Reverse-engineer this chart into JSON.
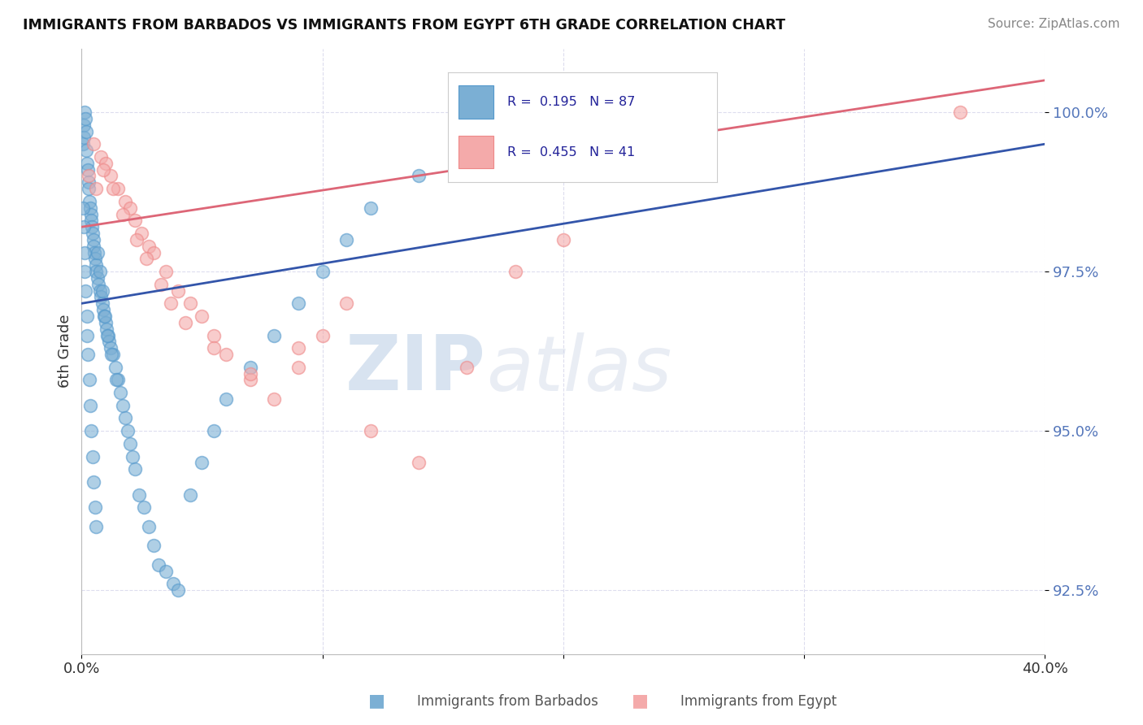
{
  "title": "IMMIGRANTS FROM BARBADOS VS IMMIGRANTS FROM EGYPT 6TH GRADE CORRELATION CHART",
  "source_text": "Source: ZipAtlas.com",
  "ylabel": "6th Grade",
  "xlim": [
    0.0,
    40.0
  ],
  "ylim": [
    91.5,
    101.0
  ],
  "x_ticks": [
    0.0,
    10.0,
    20.0,
    30.0,
    40.0
  ],
  "x_tick_labels": [
    "0.0%",
    "",
    "",
    "",
    "40.0%"
  ],
  "y_ticks": [
    92.5,
    95.0,
    97.5,
    100.0
  ],
  "y_tick_labels": [
    "92.5%",
    "95.0%",
    "97.5%",
    "100.0%"
  ],
  "blue_color": "#7BAFD4",
  "blue_edge_color": "#5599CC",
  "pink_color": "#F4AAAA",
  "pink_edge_color": "#EE8888",
  "blue_line_color": "#3355AA",
  "pink_line_color": "#DD6677",
  "legend_R1": "0.195",
  "legend_N1": "87",
  "legend_R2": "0.455",
  "legend_N2": "41",
  "legend_label1": "Immigrants from Barbados",
  "legend_label2": "Immigrants from Egypt",
  "watermark_zip": "ZIP",
  "watermark_atlas": "atlas",
  "background_color": "#ffffff",
  "grid_color": "#DDDDEE",
  "ytick_color": "#5577BB",
  "blue_x": [
    0.05,
    0.08,
    0.1,
    0.12,
    0.15,
    0.18,
    0.2,
    0.22,
    0.25,
    0.28,
    0.3,
    0.32,
    0.35,
    0.38,
    0.4,
    0.42,
    0.45,
    0.48,
    0.5,
    0.52,
    0.55,
    0.58,
    0.6,
    0.65,
    0.7,
    0.75,
    0.8,
    0.85,
    0.9,
    0.95,
    1.0,
    1.05,
    1.1,
    1.15,
    1.2,
    1.3,
    1.4,
    1.5,
    1.6,
    1.7,
    1.8,
    1.9,
    2.0,
    2.1,
    2.2,
    2.4,
    2.6,
    2.8,
    3.0,
    3.2,
    3.5,
    3.8,
    4.0,
    4.5,
    5.0,
    5.5,
    6.0,
    7.0,
    8.0,
    9.0,
    10.0,
    11.0,
    12.0,
    14.0,
    16.0,
    0.06,
    0.09,
    0.11,
    0.14,
    0.17,
    0.21,
    0.24,
    0.27,
    0.31,
    0.36,
    0.41,
    0.46,
    0.51,
    0.56,
    0.61,
    0.68,
    0.78,
    0.88,
    0.98,
    1.08,
    1.25,
    1.45
  ],
  "blue_y": [
    99.5,
    99.8,
    99.6,
    100.0,
    99.9,
    99.7,
    99.4,
    99.2,
    99.1,
    98.9,
    98.8,
    98.6,
    98.5,
    98.4,
    98.3,
    98.2,
    98.1,
    98.0,
    97.9,
    97.8,
    97.7,
    97.6,
    97.5,
    97.4,
    97.3,
    97.2,
    97.1,
    97.0,
    96.9,
    96.8,
    96.7,
    96.6,
    96.5,
    96.4,
    96.3,
    96.2,
    96.0,
    95.8,
    95.6,
    95.4,
    95.2,
    95.0,
    94.8,
    94.6,
    94.4,
    94.0,
    93.8,
    93.5,
    93.2,
    92.9,
    92.8,
    92.6,
    92.5,
    94.0,
    94.5,
    95.0,
    95.5,
    96.0,
    96.5,
    97.0,
    97.5,
    98.0,
    98.5,
    99.0,
    99.5,
    98.5,
    98.2,
    97.8,
    97.5,
    97.2,
    96.8,
    96.5,
    96.2,
    95.8,
    95.4,
    95.0,
    94.6,
    94.2,
    93.8,
    93.5,
    97.8,
    97.5,
    97.2,
    96.8,
    96.5,
    96.2,
    95.8
  ],
  "pink_x": [
    0.5,
    0.8,
    1.0,
    1.2,
    1.5,
    1.8,
    2.0,
    2.2,
    2.5,
    2.8,
    3.0,
    3.5,
    4.0,
    4.5,
    5.0,
    5.5,
    6.0,
    7.0,
    8.0,
    9.0,
    10.0,
    11.0,
    12.0,
    14.0,
    16.0,
    18.0,
    20.0,
    1.3,
    1.7,
    2.3,
    2.7,
    3.3,
    3.7,
    4.3,
    5.5,
    7.0,
    9.0,
    36.5,
    0.3,
    0.6,
    0.9
  ],
  "pink_y": [
    99.5,
    99.3,
    99.2,
    99.0,
    98.8,
    98.6,
    98.5,
    98.3,
    98.1,
    97.9,
    97.8,
    97.5,
    97.2,
    97.0,
    96.8,
    96.5,
    96.2,
    95.8,
    95.5,
    96.0,
    96.5,
    97.0,
    95.0,
    94.5,
    96.0,
    97.5,
    98.0,
    98.8,
    98.4,
    98.0,
    97.7,
    97.3,
    97.0,
    96.7,
    96.3,
    95.9,
    96.3,
    100.0,
    99.0,
    98.8,
    99.1
  ],
  "blue_line_x0": 0.0,
  "blue_line_y0": 97.0,
  "blue_line_x1": 40.0,
  "blue_line_y1": 99.5,
  "pink_line_x0": 0.0,
  "pink_line_y0": 98.2,
  "pink_line_x1": 40.0,
  "pink_line_y1": 100.5
}
